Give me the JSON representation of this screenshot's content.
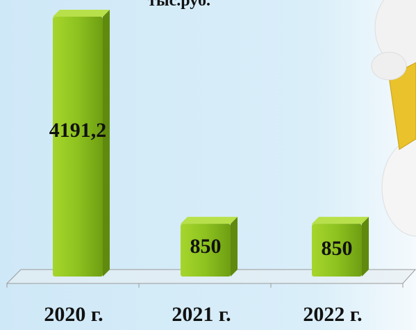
{
  "chart_data": {
    "type": "bar",
    "title": "тыс.руб.",
    "categories": [
      "2020 г.",
      "2021 г.",
      "2022 г."
    ],
    "values": [
      4191.2,
      850,
      850
    ],
    "value_labels": [
      "4191,2",
      "850",
      "850"
    ],
    "color": "#8dc21f"
  }
}
